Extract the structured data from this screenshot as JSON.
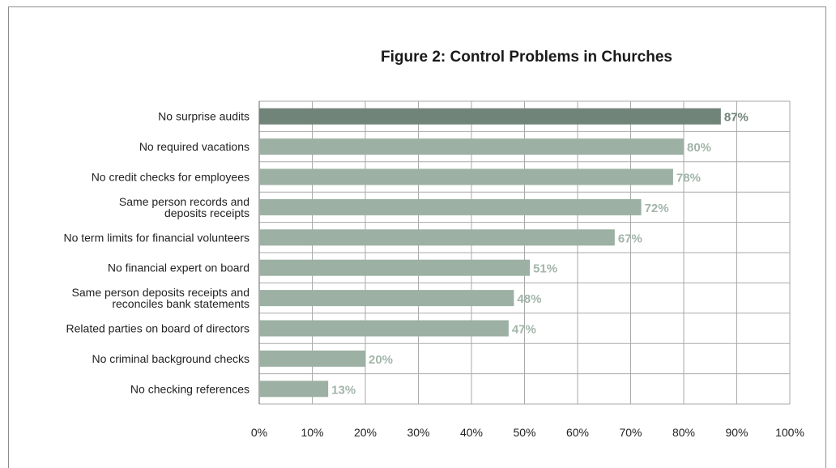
{
  "chart_data": {
    "type": "bar",
    "orientation": "horizontal",
    "title": "Figure 2: Control Problems in Churches",
    "categories": [
      [
        "No surprise audits"
      ],
      [
        "No required vacations"
      ],
      [
        "No credit checks for employees"
      ],
      [
        "Same person records and",
        "deposits receipts"
      ],
      [
        "No term limits for financial volunteers"
      ],
      [
        "No financial expert on board"
      ],
      [
        "Same person deposits receipts and",
        "reconciles bank statements"
      ],
      [
        "Related parties on board of directors"
      ],
      [
        "No criminal background checks"
      ],
      [
        "No checking references"
      ]
    ],
    "values": [
      87,
      80,
      78,
      72,
      67,
      51,
      48,
      47,
      20,
      13
    ],
    "data_labels": [
      "87%",
      "80%",
      "78%",
      "72%",
      "67%",
      "51%",
      "48%",
      "47%",
      "20%",
      "13%"
    ],
    "xlim": [
      0,
      100
    ],
    "x_ticks": [
      "0%",
      "10%",
      "20%",
      "30%",
      "40%",
      "50%",
      "60%",
      "70%",
      "80%",
      "90%",
      "100%"
    ],
    "grid": true,
    "colors": {
      "highlight_bar": "#718479",
      "bar": "#9cb0a3",
      "highlight_label": "#718479",
      "label": "#a3b5aa",
      "grid": "#a8aaa9"
    }
  }
}
